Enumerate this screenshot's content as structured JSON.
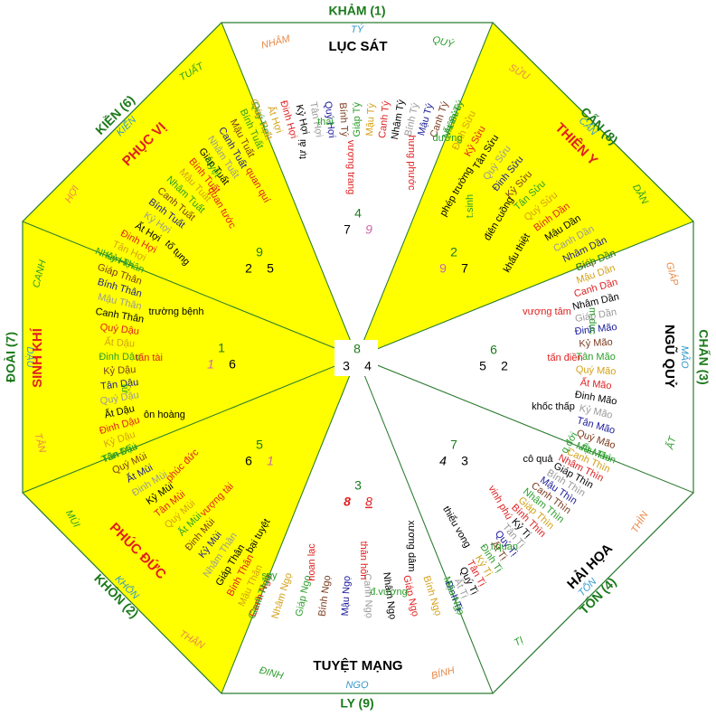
{
  "colors": {
    "yellow": "#ffff00",
    "outline": "#2e7d32",
    "directionLabel": "#1b7a1b",
    "stem": "#e8894a",
    "branch": "#2a9d2a",
    "cyan": "#3399cc",
    "red": "#e02020",
    "black": "#000000",
    "pink": "#cc66aa",
    "grey": "#888888"
  },
  "sectors": {
    "kham": {
      "direction": "KHẢM (1)",
      "mountains": [
        "NHÂM",
        "TÝ",
        "QUÝ"
      ],
      "star": "LỤC SÁT",
      "ganzhi": [
        "Quý Hợi",
        "Ất Hợi",
        "Đinh Hợi",
        "Kỷ Hợi",
        "Tân Hợi",
        "Quý Hợi",
        "Bính Tý",
        "Giáp Tý",
        "Mậu Tý",
        "Canh Tý",
        "Nhâm Tý",
        "Bính Tý",
        "Mậu Tý",
        "Canh Tý",
        "Nhâm Tý"
      ],
      "terms": [
        "thai",
        "tự ải",
        "vượng trang",
        "hưng phước"
      ],
      "flying": {
        "center": "4",
        "left": "7",
        "right": "9"
      }
    },
    "can": {
      "direction": "CẤN (8)",
      "mountains": [
        "SỬU",
        "CẤN",
        "DẦN"
      ],
      "star": "THIÊN Y",
      "ganzhi": [
        "Ất Sửu",
        "Đinh Sửu",
        "Kỷ Sửu",
        "Tân Sửu",
        "Quý Sửu",
        "Đinh Sửu",
        "Kỷ Sửu",
        "Tân Sửu",
        "Quý Sửu",
        "Bính Dần",
        "Mậu Dần",
        "Canh Dần",
        "Nhâm Dần",
        "Giáp Dần"
      ],
      "terms": [
        "đường",
        "phép trường",
        "t.sinh",
        "điên cuồng",
        "khẩu thiệt"
      ],
      "flying": {
        "center": "2",
        "left": "9",
        "right": "7"
      }
    },
    "chan": {
      "direction": "CHẤN (3)",
      "mountains": [
        "GIÁP",
        "MÃO",
        "ẤT"
      ],
      "star": "NGŨ QUỶ",
      "ganzhi": [
        "Bính Dần",
        "Mậu Dần",
        "Canh Dần",
        "Nhâm Dần",
        "Giáp Dần",
        "Đinh Mão",
        "Kỷ Mão",
        "Tân Mão",
        "Quý Mão",
        "Ất Mão",
        "Đinh Mão",
        "Kỷ Mão",
        "Tân Mão",
        "Quý Mão",
        "Ất Mão"
      ],
      "terms": [
        "vượng tâm",
        "m.dục",
        "tấn điền",
        "khốc thấp"
      ],
      "flying": {
        "center": "6",
        "left": "5",
        "right": "2"
      }
    },
    "ton": {
      "direction": "TỐN (4)",
      "mountains": [
        "THÌN",
        "TỐN",
        "TỊ"
      ],
      "star": "HẢI HỌA",
      "ganzhi": [
        "Mậu Thìn",
        "Canh Thìn",
        "Nhâm Thìn",
        "Giáp Thìn",
        "Bính Thìn",
        "Mậu Thìn",
        "Canh Thìn",
        "Nhâm Thìn",
        "Giáp Thìn",
        "Bính Thìn",
        "Kỷ Tị",
        "Tân Tị",
        "Quý Tị",
        "Ất Tị",
        "Đinh Tị",
        "Kỷ Tị",
        "Tân Tị",
        "Quý Tị",
        "Ất Tị",
        "Đinh Tị"
      ],
      "terms": [
        "q.đới",
        "cô quả",
        "vinh phú",
        "l.quan",
        "thiểu vong"
      ],
      "flying": {
        "center": "7",
        "left": "4",
        "right": "3"
      }
    },
    "ly": {
      "direction": "LY (9)",
      "mountains": [
        "BÍNH",
        "NGỌ",
        "ĐINH"
      ],
      "star": "TUYỆT MẠNG",
      "ganzhi": [
        "Mậu Ngọ",
        "Bính Ngọ",
        "Giáp Ngọ",
        "Nhâm Ngọ",
        "Canh Ngọ",
        "Mậu Ngọ",
        "Bính Ngọ",
        "Giáp Ngọ",
        "Nhâm Ngọ",
        "Canh Ngọ"
      ],
      "terms": [
        "xương dâm",
        "đ.vượng",
        "thân hôn",
        "hoan lạc"
      ],
      "flying": {
        "center": "3",
        "left": "8",
        "right": "8"
      }
    },
    "khon": {
      "direction": "KHÔN (2)",
      "mountains": [
        "THÂN",
        "KHÔN",
        "MÙI"
      ],
      "star": "PHÚC ĐỨC",
      "ganzhi": [
        "Canh Thân",
        "Mậu Thân",
        "Bính Thân",
        "Giáp Thân",
        "Nhâm Thân",
        "Kỷ Mùi",
        "Đinh Mùi",
        "Ất Mùi",
        "Quý Mùi",
        "Tân Mùi",
        "Kỷ Mùi",
        "Đinh Mùi",
        "Ất Mùi",
        "Quý Mùi",
        "Tân Mùi"
      ],
      "terms": [
        "phúc đức",
        "vượng tài",
        "bại tuyệt",
        "suy"
      ],
      "flying": {
        "center": "5",
        "left": "6",
        "right": "1"
      }
    },
    "doai": {
      "direction": "ĐOÀI (7)",
      "mountains": [
        "TÂN",
        "DẬU",
        "CANH"
      ],
      "star": "SINH KHÍ",
      "ganzhi": [
        "Tân Dậu",
        "Kỷ Dậu",
        "Đinh Dậu",
        "Ất Dậu",
        "Quý Dậu",
        "Tân Dậu",
        "Kỷ Dậu",
        "Đinh Dậu",
        "Ất Dậu",
        "Quý Dậu",
        "Canh Thân",
        "Mậu Thân",
        "Bính Thân",
        "Giáp Thân",
        "Nhâm Thân"
      ],
      "terms": [
        "trường bệnh",
        "tấn tài",
        "ôn hoàng",
        "tử"
      ],
      "flying": {
        "center": "1",
        "left": "1",
        "right": "6"
      }
    },
    "kien": {
      "direction": "KIỀN (6)",
      "mountains": [
        "HỢI",
        "KIỀN",
        "TUẤT"
      ],
      "star": "PHỤC VỊ",
      "ganzhi": [
        "Kỷ Hợi",
        "Tân Hợi",
        "Đinh Hợi",
        "Ất Hợi",
        "Kỷ Hợi",
        "Bính Tuất",
        "Canh Tuất",
        "Nhâm Tuất",
        "Mậu Tuất",
        "Bính Tuất",
        "Giáp Tuất",
        "Nhâm Tuất",
        "Canh Tuất",
        "Mậu Tuất",
        "Bính Tuất",
        "Giáp Tuất"
      ],
      "terms": [
        "quan quí",
        "quan tước",
        "tố tụng",
        "tuyệt"
      ],
      "flying": {
        "center": "9",
        "left": "2",
        "right": "5"
      }
    },
    "center": {
      "center": "8",
      "left": "3",
      "right": "4"
    }
  }
}
